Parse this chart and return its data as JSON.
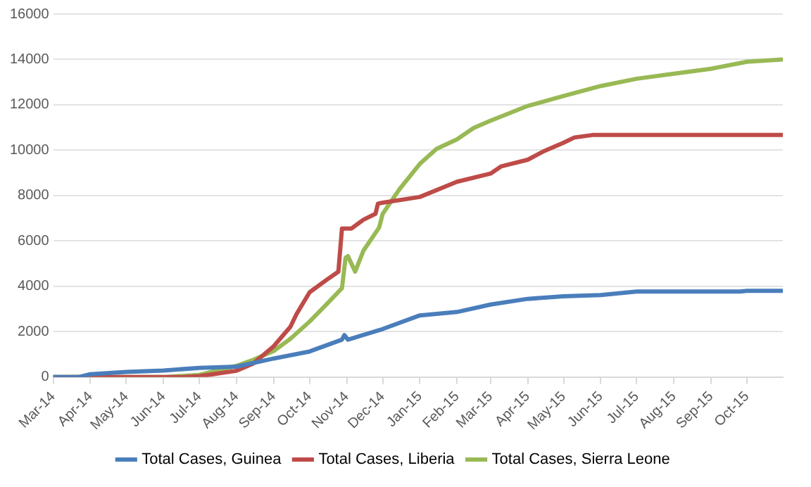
{
  "chart_data": {
    "type": "line",
    "xlim": [
      "2014-03-01",
      "2015-10-31"
    ],
    "xticks": [
      {
        "value": "2014-03-01",
        "label": "Mar-14"
      },
      {
        "value": "2014-04-01",
        "label": "Apr-14"
      },
      {
        "value": "2014-05-01",
        "label": "May-14"
      },
      {
        "value": "2014-06-01",
        "label": "Jun-14"
      },
      {
        "value": "2014-07-01",
        "label": "Jul-14"
      },
      {
        "value": "2014-08-01",
        "label": "Aug-14"
      },
      {
        "value": "2014-09-01",
        "label": "Sep-14"
      },
      {
        "value": "2014-10-01",
        "label": "Oct-14"
      },
      {
        "value": "2014-11-01",
        "label": "Nov-14"
      },
      {
        "value": "2014-12-01",
        "label": "Dec-14"
      },
      {
        "value": "2015-01-01",
        "label": "Jan-15"
      },
      {
        "value": "2015-02-01",
        "label": "Feb-15"
      },
      {
        "value": "2015-03-01",
        "label": "Mar-15"
      },
      {
        "value": "2015-04-01",
        "label": "Apr-15"
      },
      {
        "value": "2015-05-01",
        "label": "May-15"
      },
      {
        "value": "2015-06-01",
        "label": "Jun-15"
      },
      {
        "value": "2015-07-01",
        "label": "Jul-15"
      },
      {
        "value": "2015-08-01",
        "label": "Aug-15"
      },
      {
        "value": "2015-09-01",
        "label": "Sep-15"
      },
      {
        "value": "2015-10-01",
        "label": "Oct-15"
      }
    ],
    "ylim": [
      0,
      16000
    ],
    "yticks": [
      0,
      2000,
      4000,
      6000,
      8000,
      10000,
      12000,
      14000,
      16000
    ],
    "grid": "y",
    "legend": "bottom",
    "marker": "none",
    "line_style": "solid",
    "series": [
      {
        "name": "Total Cases, Guinea",
        "color": "#4a7ebb",
        "x": [
          "2014-03-01",
          "2014-03-22",
          "2014-04-01",
          "2014-05-01",
          "2014-06-01",
          "2014-07-01",
          "2014-08-01",
          "2014-09-01",
          "2014-10-01",
          "2014-10-28",
          "2014-10-30",
          "2014-11-02",
          "2014-12-01",
          "2015-01-01",
          "2015-02-01",
          "2015-03-01",
          "2015-04-01",
          "2015-05-01",
          "2015-06-01",
          "2015-07-01",
          "2015-09-25",
          "2015-10-01",
          "2015-10-31"
        ],
        "values": [
          0,
          0,
          130,
          230,
          290,
          410,
          460,
          820,
          1130,
          1650,
          1850,
          1650,
          2120,
          2720,
          2870,
          3200,
          3450,
          3560,
          3620,
          3770,
          3770,
          3800,
          3800
        ]
      },
      {
        "name": "Total Cases, Liberia",
        "color": "#be4b48",
        "x": [
          "2014-03-01",
          "2014-06-15",
          "2014-07-01",
          "2014-08-01",
          "2014-08-15",
          "2014-09-01",
          "2014-09-15",
          "2014-09-20",
          "2014-10-01",
          "2014-10-15",
          "2014-10-25",
          "2014-10-28",
          "2014-11-05",
          "2014-11-15",
          "2014-11-25",
          "2014-11-27",
          "2014-12-01",
          "2015-01-01",
          "2015-02-01",
          "2015-03-01",
          "2015-03-10",
          "2015-04-01",
          "2015-04-15",
          "2015-05-01",
          "2015-05-10",
          "2015-05-25",
          "2015-10-31"
        ],
        "values": [
          0,
          0,
          40,
          280,
          600,
          1360,
          2220,
          2770,
          3740,
          4280,
          4650,
          6550,
          6550,
          6940,
          7200,
          7640,
          7690,
          7940,
          8610,
          8970,
          9290,
          9580,
          9970,
          10330,
          10560,
          10670,
          10670
        ]
      },
      {
        "name": "Total Cases, Sierra Leone",
        "color": "#98b954",
        "x": [
          "2014-03-01",
          "2014-06-01",
          "2014-07-01",
          "2014-08-01",
          "2014-08-15",
          "2014-09-01",
          "2014-09-15",
          "2014-10-01",
          "2014-10-15",
          "2014-10-28",
          "2014-10-31",
          "2014-11-02",
          "2014-11-08",
          "2014-11-15",
          "2014-11-28",
          "2014-12-01",
          "2014-12-15",
          "2015-01-01",
          "2015-01-15",
          "2015-02-01",
          "2015-02-15",
          "2015-03-01",
          "2015-04-01",
          "2015-05-01",
          "2015-06-01",
          "2015-07-01",
          "2015-08-01",
          "2015-09-01",
          "2015-10-01",
          "2015-10-31"
        ],
        "values": [
          0,
          0,
          100,
          500,
          760,
          1150,
          1690,
          2450,
          3200,
          3920,
          5260,
          5330,
          4650,
          5580,
          6590,
          7200,
          8280,
          9400,
          10060,
          10480,
          10980,
          11300,
          11950,
          12390,
          12830,
          13150,
          13370,
          13590,
          13900,
          14000
        ]
      }
    ]
  }
}
